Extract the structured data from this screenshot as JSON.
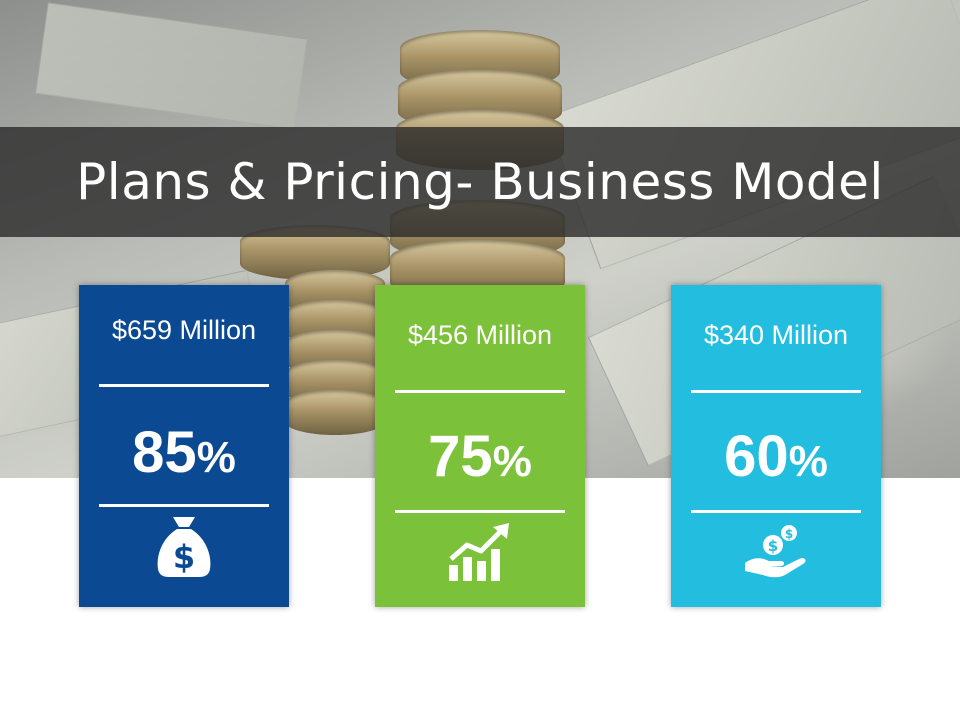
{
  "slide": {
    "title": "Plans & Pricing- Business Model"
  },
  "cards": [
    {
      "amount": "$659 Million",
      "percent": "85",
      "percent_symbol": "%",
      "icon": "money-bag-icon",
      "color": "#0b4a93"
    },
    {
      "amount": "$456 Million",
      "percent": "75",
      "percent_symbol": "%",
      "icon": "growth-chart-icon",
      "color": "#7cc13a"
    },
    {
      "amount": "$340 Million",
      "percent": "60",
      "percent_symbol": "%",
      "icon": "hand-coins-icon",
      "color": "#23bde0"
    }
  ]
}
